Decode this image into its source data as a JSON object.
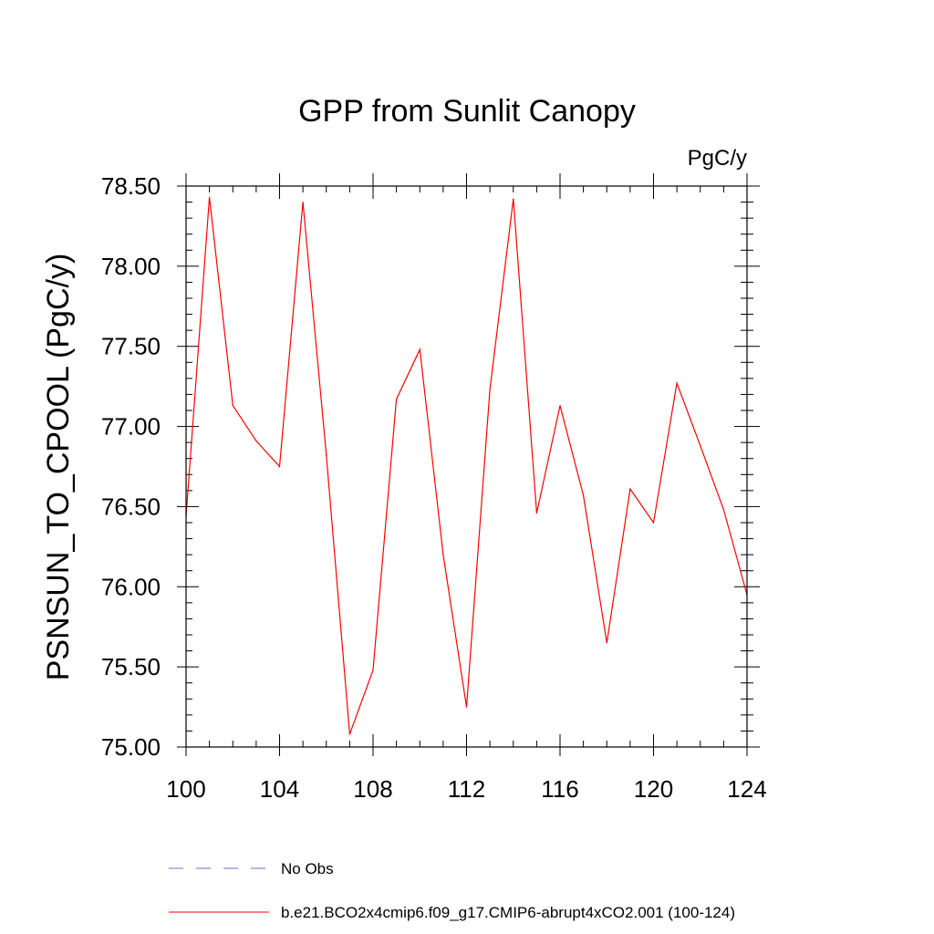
{
  "chart_data": {
    "type": "line",
    "title": "GPP from Sunlit Canopy",
    "units_label": "PgC/y",
    "ylabel": "PSNSUN_TO_CPOOL  (PgC/y)",
    "xlabel": "",
    "xlim": [
      100,
      124
    ],
    "ylim": [
      75.0,
      78.5
    ],
    "x_ticks": [
      "100",
      "104",
      "108",
      "112",
      "116",
      "120",
      "124"
    ],
    "y_ticks": [
      "75.00",
      "75.50",
      "76.00",
      "76.50",
      "77.00",
      "77.50",
      "78.00",
      "78.50"
    ],
    "series": [
      {
        "name": "b.e21.BCO2x4cmip6.f09_g17.CMIP6-abrupt4xCO2.001 (100-124)",
        "color": "#ff0000",
        "x": [
          100,
          101,
          102,
          103,
          104,
          105,
          106,
          107,
          108,
          109,
          110,
          111,
          112,
          113,
          114,
          115,
          116,
          117,
          118,
          119,
          120,
          121,
          122,
          123,
          124
        ],
        "y": [
          76.44,
          78.43,
          77.13,
          76.91,
          76.75,
          78.4,
          76.82,
          75.08,
          75.48,
          77.17,
          77.48,
          76.2,
          75.25,
          77.23,
          78.42,
          76.46,
          77.13,
          76.57,
          75.65,
          76.61,
          76.4,
          77.27,
          76.88,
          76.48,
          75.95
        ]
      }
    ],
    "legend": {
      "placement": "bottom",
      "entries": [
        {
          "label": "No Obs",
          "color": "#6e6ec8",
          "style": "dashed"
        },
        {
          "label": "b.e21.BCO2x4cmip6.f09_g17.CMIP6-abrupt4xCO2.001 (100-124)",
          "color": "#ff0000",
          "style": "solid"
        }
      ]
    },
    "grid": false
  }
}
